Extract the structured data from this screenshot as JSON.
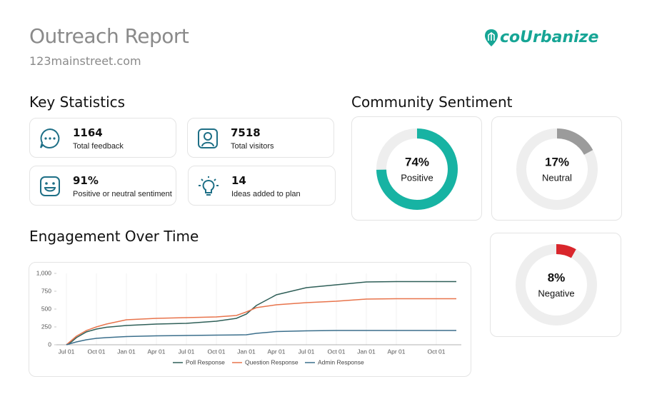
{
  "header": {
    "title": "Outreach Report",
    "subtitle": "123mainstreet.com",
    "logo": "coUrbanize"
  },
  "key_statistics": {
    "title": "Key Statistics",
    "items": [
      {
        "value": "1164",
        "label": "Total feedback"
      },
      {
        "value": "7518",
        "label": "Total visitors"
      },
      {
        "value": "91%",
        "label": "Positive or neutral sentiment"
      },
      {
        "value": "14",
        "label": "Ideas added to plan"
      }
    ]
  },
  "chart_data": [
    {
      "type": "donut",
      "title": "Community Sentiment",
      "categories": [
        "Positive",
        "Neutral",
        "Negative"
      ],
      "values": [
        74,
        17,
        8
      ],
      "value_labels": [
        "74%",
        "17%",
        "8%"
      ],
      "colors": [
        "#17b3a3",
        "#9b9b9b",
        "#d9262c"
      ]
    },
    {
      "type": "line",
      "title": "Engagement Over Time",
      "x": [
        0,
        0.5,
        1,
        2,
        3,
        4,
        6,
        9,
        12,
        15,
        17,
        18,
        19,
        21,
        24,
        27,
        30,
        33,
        36,
        39
      ],
      "xlim": [
        -1,
        39.5
      ],
      "xticks": [
        {
          "value": 0,
          "label": "Jul 01"
        },
        {
          "value": 3,
          "label": "Oct 01"
        },
        {
          "value": 6,
          "label": "Jan 01"
        },
        {
          "value": 9,
          "label": "Apr 01"
        },
        {
          "value": 12,
          "label": "Jul 01"
        },
        {
          "value": 15,
          "label": "Oct 01"
        },
        {
          "value": 18,
          "label": "Jan 01"
        },
        {
          "value": 21,
          "label": "Apr 01"
        },
        {
          "value": 24,
          "label": "Jul 01"
        },
        {
          "value": 27,
          "label": "Oct 01"
        },
        {
          "value": 30,
          "label": "Jan 01"
        },
        {
          "value": 33,
          "label": "Apr 01"
        },
        {
          "value": 37,
          "label": "Oct 01"
        }
      ],
      "ylim": [
        0,
        1000
      ],
      "yticks": [
        0,
        250,
        500,
        750,
        {
          "value": 1000,
          "label": "1,000"
        }
      ],
      "grid": true,
      "series": [
        {
          "name": "Poll Response",
          "color": "#2f5f58",
          "values": [
            0,
            40,
            100,
            180,
            220,
            245,
            270,
            290,
            300,
            330,
            370,
            430,
            550,
            700,
            800,
            840,
            880,
            885,
            885,
            885
          ]
        },
        {
          "name": "Question Response",
          "color": "#e8744c",
          "values": [
            0,
            60,
            120,
            200,
            250,
            290,
            350,
            370,
            380,
            390,
            410,
            460,
            520,
            560,
            590,
            610,
            640,
            645,
            645,
            645
          ]
        },
        {
          "name": "Admin Response",
          "color": "#3b6f8c",
          "values": [
            0,
            20,
            40,
            70,
            90,
            100,
            115,
            125,
            130,
            135,
            138,
            140,
            160,
            185,
            195,
            200,
            200,
            200,
            200,
            200
          ]
        }
      ]
    }
  ]
}
